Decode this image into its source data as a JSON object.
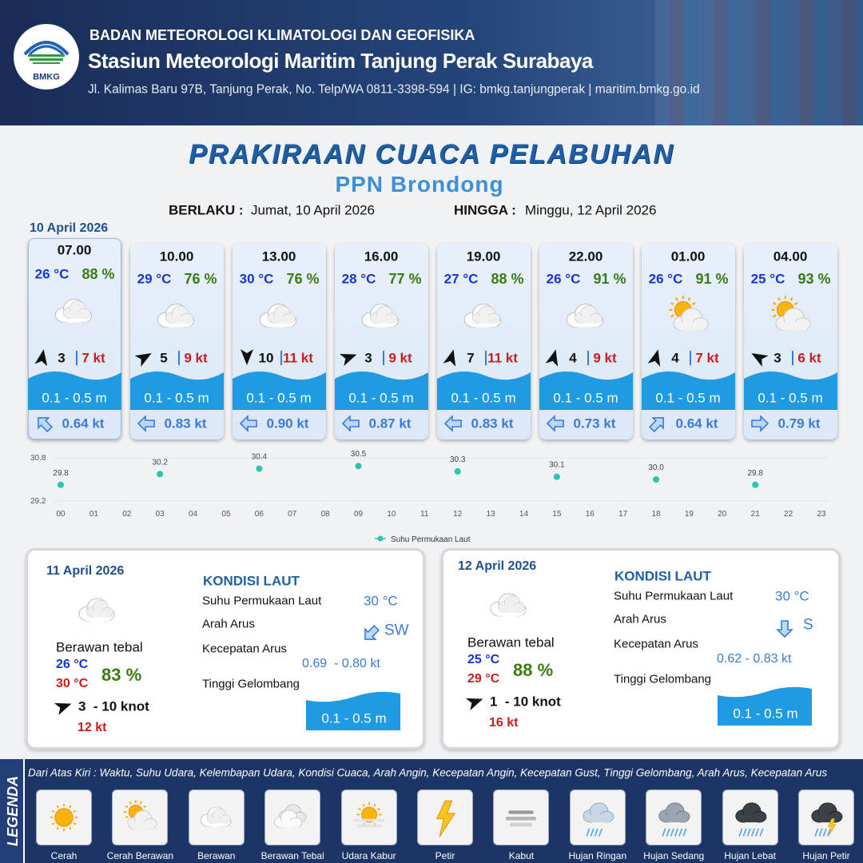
{
  "header": {
    "logo": "BMKG",
    "org": "BADAN METEOROLOGI KLIMATOLOGI DAN GEOFISIKA",
    "station": "Stasiun Meteorologi Maritim Tanjung Perak Surabaya",
    "address": "Jl. Kalimas Baru 97B, Tanjung Perak, No. Telp/WA 0811-3398-594 | IG: bmkg.tanjungperak | maritim.bmkg.go.id"
  },
  "title": "PRAKIRAAN CUACA PELABUHAN",
  "subtitle": "PPN Brondong",
  "validity": {
    "from_label": "BERLAKU :",
    "from": "Jumat, 10 April 2026",
    "to_label": "HINGGA :",
    "to": "Minggu, 12 April 2026"
  },
  "today": {
    "date": "10 April 2026",
    "forecasts": [
      {
        "time": "07.00",
        "temp": "26 °C",
        "humidity": "88 %",
        "wind": "3",
        "gust": "7 kt",
        "wave": "0.1 - 0.5 m",
        "current": "0.64 kt"
      },
      {
        "time": "10.00",
        "temp": "29 °C",
        "humidity": "76 %",
        "wind": "5",
        "gust": "9 kt",
        "wave": "0.1 - 0.5 m",
        "current": "0.83 kt"
      },
      {
        "time": "13.00",
        "temp": "30 °C",
        "humidity": "76 %",
        "wind": "10",
        "gust": "11 kt",
        "wave": "0.1 - 0.5 m",
        "current": "0.90 kt"
      },
      {
        "time": "16.00",
        "temp": "28 °C",
        "humidity": "77 %",
        "wind": "3",
        "gust": "9 kt",
        "wave": "0.1 - 0.5 m",
        "current": "0.87 kt"
      },
      {
        "time": "19.00",
        "temp": "27 °C",
        "humidity": "88 %",
        "wind": "7",
        "gust": "11 kt",
        "wave": "0.1 - 0.5 m",
        "current": "0.83 kt"
      },
      {
        "time": "22.00",
        "temp": "26 °C",
        "humidity": "91 %",
        "wind": "4",
        "gust": "9 kt",
        "wave": "0.1 - 0.5 m",
        "current": "0.73 kt"
      },
      {
        "time": "01.00",
        "temp": "26 °C",
        "humidity": "91 %",
        "wind": "4",
        "gust": "7 kt",
        "wave": "0.1 - 0.5 m",
        "current": "0.64 kt"
      },
      {
        "time": "04.00",
        "temp": "25 °C",
        "humidity": "93 %",
        "wind": "3",
        "gust": "6 kt",
        "wave": "0.1 - 0.5 m",
        "current": "0.79 kt"
      }
    ]
  },
  "chart_data": {
    "type": "scatter",
    "x": [
      0,
      3,
      6,
      9,
      12,
      15,
      18,
      21
    ],
    "series": [
      {
        "name": "Suhu Permukaan Laut",
        "color": "#26c6b0",
        "values": [
          29.8,
          30.2,
          30.4,
          30.5,
          30.3,
          30.1,
          30.0,
          29.8
        ],
        "value_labels": [
          "29.8",
          "30.2",
          "30.4",
          "30.5",
          "30.3",
          "30.1",
          "30.0",
          "29.8"
        ]
      }
    ],
    "xlim": [
      0,
      23
    ],
    "xticks": [
      {
        "value": 0,
        "label": "00"
      },
      {
        "value": 1,
        "label": "01"
      },
      {
        "value": 2,
        "label": "02"
      },
      {
        "value": 3,
        "label": "03"
      },
      {
        "value": 4,
        "label": "04"
      },
      {
        "value": 5,
        "label": "05"
      },
      {
        "value": 6,
        "label": "06"
      },
      {
        "value": 7,
        "label": "07"
      },
      {
        "value": 8,
        "label": "08"
      },
      {
        "value": 9,
        "label": "09"
      },
      10,
      11,
      12,
      13,
      14,
      15,
      16,
      17,
      18,
      19,
      20,
      21,
      22,
      23
    ],
    "ylim": [
      29.2,
      30.8
    ],
    "yticks": [
      29.2,
      30.8
    ],
    "grid": true,
    "legend": "bottom"
  },
  "days": [
    {
      "date": "11 April 2026",
      "condition": "Berawan tebal",
      "temp_min": "26 °C",
      "temp_max": "30 °C",
      "humidity": "83 %",
      "wind": "3  - 10 knot",
      "gust": "12 kt",
      "sea": {
        "title": "KONDISI LAUT",
        "sst_label": "Suhu Permukaan Laut",
        "sst": "30 °C",
        "dir_label": "Arah Arus",
        "dir": "SW",
        "speed_label": "Kecepatan Arus",
        "speed": "0.69  - 0.80 kt",
        "wave_label": "Tinggi Gelombang",
        "wave": "0.1 - 0.5 m"
      }
    },
    {
      "date": "12 April 2026",
      "condition": "Berawan tebal",
      "temp_min": "25 °C",
      "temp_max": "29 °C",
      "humidity": "88 %",
      "wind": "1  - 10 knot",
      "gust": "16 kt",
      "sea": {
        "title": "KONDISI LAUT",
        "sst_label": "Suhu Permukaan Laut",
        "sst": "30 °C",
        "dir_label": "Arah Arus",
        "dir": "S",
        "speed_label": "Kecepatan Arus",
        "speed": "0.62 - 0.83 kt",
        "wave_label": "Tinggi Gelombang",
        "wave": "0.1 - 0.5 m"
      }
    }
  ],
  "legend": {
    "title": "LEGENDA",
    "note": "Dari Atas Kiri : Waktu, Suhu Udara, Kelembapan Udara, Kondisi Cuaca, Arah Angin, Kecepatan Angin, Kecepatan Gust, Tinggi Gelombang, Arah Arus, Kecepatan Arus",
    "items": [
      "Cerah",
      "Cerah Berawan",
      "Berawan",
      "Berawan Tebal",
      "Udara Kabur",
      "Petir",
      "Kabut",
      "Hujan Ringan",
      "Hujan Sedang",
      "Hujan Lebat",
      "Hujan Petir"
    ]
  }
}
